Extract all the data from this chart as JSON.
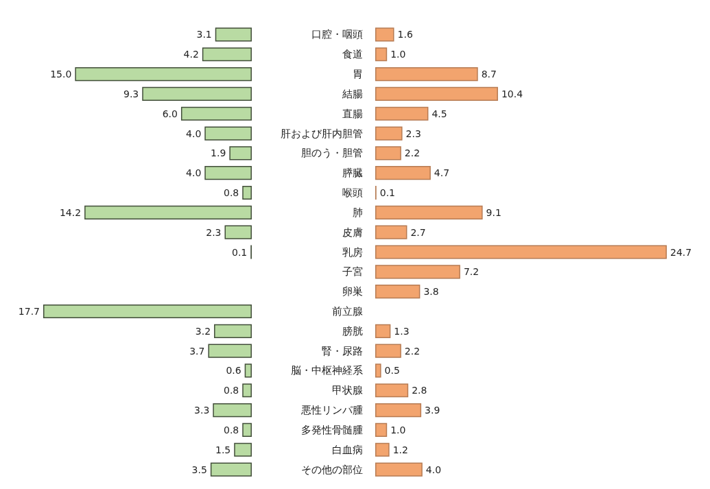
{
  "chart_data": [
    {
      "type": "bar",
      "orientation": "horizontal",
      "tick_labels": "y",
      "xlim": [
        17.7,
        0
      ],
      "categories": [
        "口腔・咽頭",
        "食道",
        "胃",
        "結腸",
        "直腸",
        "肝および肝内胆管",
        "胆のう・胆管",
        "膵臓",
        "喉頭",
        "肺",
        "皮膚",
        "乳房",
        "子宮",
        "卵巣",
        "前立腺",
        "膀胱",
        "腎・尿路",
        "脳・中枢神経系",
        "甲状腺",
        "悪性リンパ腫",
        "多発性骨髄腫",
        "白血病",
        "その他の部位"
      ],
      "series": [
        {
          "color": "#b9dba3",
          "values": [
            3.1,
            4.2,
            15.0,
            9.3,
            6.0,
            4.0,
            1.9,
            4.0,
            0.8,
            14.2,
            2.3,
            0.1,
            null,
            null,
            17.7,
            3.2,
            3.7,
            0.6,
            0.8,
            3.3,
            0.8,
            1.5,
            3.5
          ],
          "value_labels": [
            "3.1",
            "4.2",
            "15.0",
            "9.3",
            "6.0",
            "4.0",
            "1.9",
            "4.0",
            "0.8",
            "14.2",
            "2.3",
            "0.1",
            null,
            null,
            "17.7",
            "3.2",
            "3.7",
            "0.6",
            "0.8",
            "3.3",
            "0.8",
            "1.5",
            "3.5"
          ]
        }
      ]
    },
    {
      "type": "bar",
      "orientation": "horizontal",
      "tick_labels": false,
      "xlim": [
        0,
        24.7
      ],
      "categories": [
        null,
        null,
        null,
        null,
        null,
        null,
        null,
        null,
        null,
        null,
        null,
        null,
        null,
        null,
        null,
        null,
        null,
        null,
        null,
        null,
        null,
        null,
        null
      ],
      "series": [
        {
          "color": "#f2a46e",
          "values": [
            1.6,
            1.0,
            8.7,
            10.4,
            4.5,
            2.3,
            2.2,
            4.7,
            0.1,
            9.1,
            2.7,
            24.7,
            7.2,
            3.8,
            null,
            1.3,
            2.2,
            0.5,
            2.8,
            3.9,
            1.0,
            1.2,
            4.0
          ],
          "value_labels": [
            "1.6",
            "1.0",
            "8.7",
            "10.4",
            "4.5",
            "2.3",
            "2.2",
            "4.7",
            "0.1",
            "9.1",
            "2.7",
            "24.7",
            "7.2",
            "3.8",
            null,
            "1.3",
            "2.2",
            "0.5",
            "2.8",
            "3.9",
            "1.0",
            "1.2",
            "4.0"
          ]
        }
      ]
    }
  ]
}
